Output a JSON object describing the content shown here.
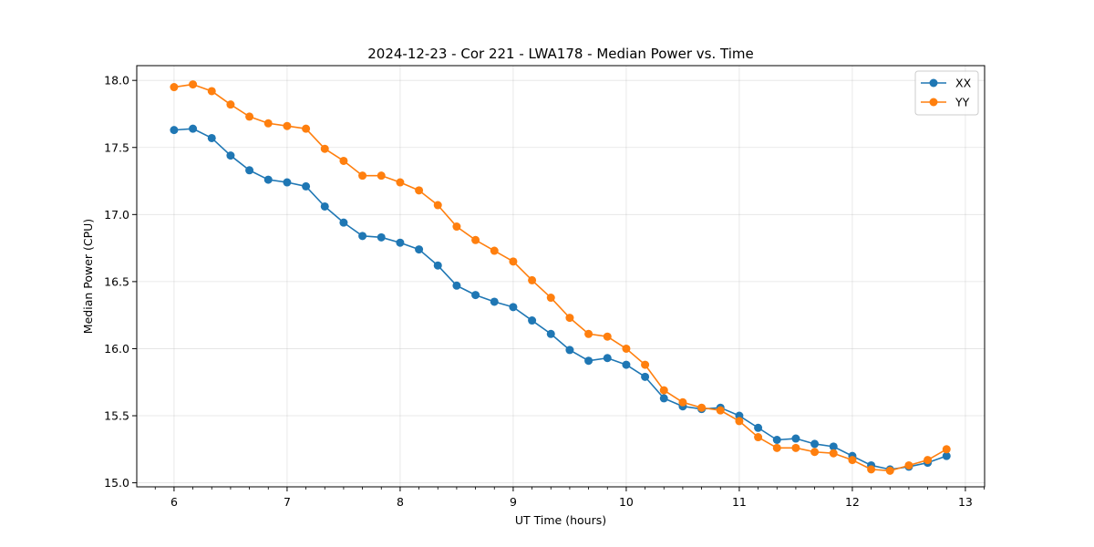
{
  "chart_data": {
    "type": "line",
    "title": "2024-12-23 - Cor 221 - LWA178 - Median Power vs. Time",
    "xlabel": "UT Time (hours)",
    "ylabel": "Median Power (CPU)",
    "xlim": [
      5.67,
      13.17
    ],
    "ylim": [
      14.97,
      18.11
    ],
    "xticks": [
      6,
      7,
      8,
      9,
      10,
      11,
      12,
      13
    ],
    "xtick_labels": [
      "6",
      "7",
      "8",
      "9",
      "10",
      "11",
      "12",
      "13"
    ],
    "yticks": [
      15.0,
      15.5,
      16.0,
      16.5,
      17.0,
      17.5,
      18.0
    ],
    "ytick_labels": [
      "15.0",
      "15.5",
      "16.0",
      "16.5",
      "17.0",
      "17.5",
      "18.0"
    ],
    "grid": true,
    "legend_position": "top-right",
    "x": [
      6.0,
      6.1667,
      6.3333,
      6.5,
      6.6667,
      6.8333,
      7.0,
      7.1667,
      7.3333,
      7.5,
      7.6667,
      7.8333,
      8.0,
      8.1667,
      8.3333,
      8.5,
      8.6667,
      8.8333,
      9.0,
      9.1667,
      9.3333,
      9.5,
      9.6667,
      9.8333,
      10.0,
      10.1667,
      10.3333,
      10.5,
      10.6667,
      10.8333,
      11.0,
      11.1667,
      11.3333,
      11.5,
      11.6667,
      11.8333,
      12.0,
      12.1667,
      12.3333,
      12.5,
      12.6667,
      12.8333
    ],
    "series": [
      {
        "name": "XX",
        "color": "#1f77b4",
        "values": [
          17.63,
          17.64,
          17.57,
          17.44,
          17.33,
          17.26,
          17.24,
          17.21,
          17.06,
          16.94,
          16.84,
          16.83,
          16.79,
          16.74,
          16.62,
          16.47,
          16.4,
          16.35,
          16.31,
          16.21,
          16.11,
          15.99,
          15.91,
          15.93,
          15.88,
          15.79,
          15.63,
          15.57,
          15.55,
          15.56,
          15.5,
          15.41,
          15.32,
          15.33,
          15.29,
          15.27,
          15.2,
          15.13,
          15.1,
          15.12,
          15.15,
          15.2
        ]
      },
      {
        "name": "YY",
        "color": "#ff7f0e",
        "values": [
          17.95,
          17.97,
          17.92,
          17.82,
          17.73,
          17.68,
          17.66,
          17.64,
          17.49,
          17.4,
          17.29,
          17.29,
          17.24,
          17.18,
          17.07,
          16.91,
          16.81,
          16.73,
          16.65,
          16.51,
          16.38,
          16.23,
          16.11,
          16.09,
          16.0,
          15.88,
          15.69,
          15.6,
          15.56,
          15.54,
          15.46,
          15.34,
          15.26,
          15.26,
          15.23,
          15.22,
          15.17,
          15.1,
          15.09,
          15.13,
          15.17,
          15.25
        ]
      }
    ]
  }
}
